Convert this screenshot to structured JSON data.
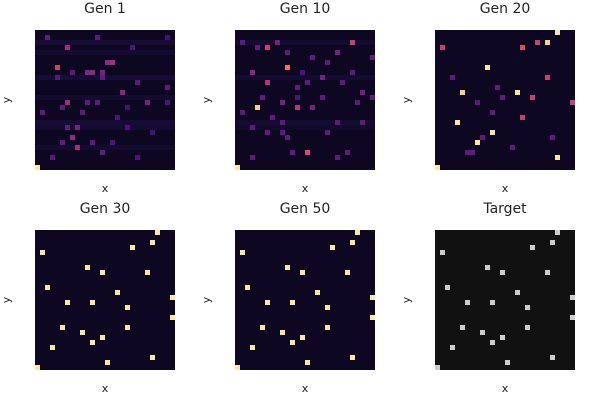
{
  "chart_data": [
    {
      "type": "heatmap",
      "title": "Gen 1",
      "xlabel": "x",
      "ylabel": "y",
      "grid_size": 28,
      "ticks": false,
      "colormap": "magma",
      "background_value": 0.06,
      "row_bands": [
        {
          "row": 2,
          "value": 0.1
        },
        {
          "row": 4,
          "value": 0.09
        },
        {
          "row": 9,
          "value": 0.1
        },
        {
          "row": 13,
          "value": 0.09
        },
        {
          "row": 18,
          "value": 0.1
        },
        {
          "row": 19,
          "value": 0.09
        },
        {
          "row": 23,
          "value": 0.09
        }
      ],
      "cells": [
        [
          2,
          1,
          0.3
        ],
        [
          6,
          3,
          0.45
        ],
        [
          12,
          1,
          0.3
        ],
        [
          19,
          3,
          0.25
        ],
        [
          26,
          1,
          0.22
        ],
        [
          14,
          6,
          0.42
        ],
        [
          15,
          6,
          0.45
        ],
        [
          4,
          7,
          0.55
        ],
        [
          10,
          8,
          0.38
        ],
        [
          11,
          8,
          0.4
        ],
        [
          13,
          8,
          0.35
        ],
        [
          7,
          8,
          0.3
        ],
        [
          4,
          9,
          0.28
        ],
        [
          13,
          9,
          0.3
        ],
        [
          20,
          10,
          0.3
        ],
        [
          17,
          12,
          0.4
        ],
        [
          26,
          11,
          0.3
        ],
        [
          6,
          14,
          0.45
        ],
        [
          10,
          14,
          0.3
        ],
        [
          12,
          14,
          0.3
        ],
        [
          22,
          14,
          0.35
        ],
        [
          26,
          14,
          0.25
        ],
        [
          5,
          15,
          0.3
        ],
        [
          18,
          15,
          0.22
        ],
        [
          1,
          16,
          0.3
        ],
        [
          9,
          16,
          0.3
        ],
        [
          16,
          17,
          0.25
        ],
        [
          6,
          19,
          0.3
        ],
        [
          8,
          19,
          0.35
        ],
        [
          18,
          19,
          0.25
        ],
        [
          23,
          20,
          0.22
        ],
        [
          7,
          21,
          0.42
        ],
        [
          5,
          22,
          0.3
        ],
        [
          11,
          22,
          0.3
        ],
        [
          15,
          22,
          0.25
        ],
        [
          8,
          23,
          0.45
        ],
        [
          13,
          24,
          0.3
        ],
        [
          3,
          25,
          0.28
        ],
        [
          20,
          25,
          0.25
        ],
        [
          0,
          27,
          0.95
        ]
      ]
    },
    {
      "type": "heatmap",
      "title": "Gen 10",
      "xlabel": "x",
      "ylabel": "y",
      "grid_size": 28,
      "ticks": false,
      "colormap": "magma",
      "background_value": 0.06,
      "row_bands": [
        {
          "row": 2,
          "value": 0.09
        },
        {
          "row": 9,
          "value": 0.09
        },
        {
          "row": 18,
          "value": 0.09
        },
        {
          "row": 19,
          "value": 0.08
        }
      ],
      "cells": [
        [
          23,
          2,
          0.55
        ],
        [
          1,
          2,
          0.3
        ],
        [
          8,
          2,
          0.35
        ],
        [
          6,
          3,
          0.55
        ],
        [
          4,
          3,
          0.3
        ],
        [
          20,
          4,
          0.35
        ],
        [
          10,
          4,
          0.3
        ],
        [
          15,
          5,
          0.3
        ],
        [
          27,
          5,
          0.3
        ],
        [
          10,
          7,
          0.7
        ],
        [
          18,
          6,
          0.3
        ],
        [
          3,
          8,
          0.4
        ],
        [
          13,
          8,
          0.25
        ],
        [
          23,
          8,
          0.3
        ],
        [
          17,
          9,
          0.35
        ],
        [
          6,
          10,
          0.5
        ],
        [
          14,
          10,
          0.3
        ],
        [
          21,
          10,
          0.3
        ],
        [
          12,
          11,
          0.3
        ],
        [
          25,
          12,
          0.35
        ],
        [
          5,
          13,
          0.3
        ],
        [
          12,
          13,
          0.25
        ],
        [
          17,
          13,
          0.3
        ],
        [
          27,
          13,
          0.3
        ],
        [
          9,
          14,
          0.35
        ],
        [
          24,
          14,
          0.3
        ],
        [
          4,
          15,
          0.9
        ],
        [
          12,
          15,
          0.5
        ],
        [
          15,
          15,
          0.35
        ],
        [
          1,
          16,
          0.3
        ],
        [
          7,
          17,
          0.3
        ],
        [
          20,
          18,
          0.3
        ],
        [
          9,
          18,
          0.3
        ],
        [
          25,
          18,
          0.3
        ],
        [
          3,
          19,
          0.3
        ],
        [
          6,
          20,
          0.3
        ],
        [
          9,
          20,
          0.3
        ],
        [
          18,
          20,
          0.3
        ],
        [
          10,
          21,
          0.3
        ],
        [
          14,
          24,
          0.6
        ],
        [
          11,
          24,
          0.3
        ],
        [
          22,
          24,
          0.3
        ],
        [
          20,
          25,
          0.3
        ],
        [
          3,
          25,
          0.3
        ],
        [
          0,
          27,
          0.95
        ]
      ]
    },
    {
      "type": "heatmap",
      "title": "Gen 20",
      "xlabel": "x",
      "ylabel": "y",
      "grid_size": 28,
      "ticks": false,
      "colormap": "magma",
      "background_value": 0.06,
      "row_bands": [],
      "cells": [
        [
          24,
          0,
          0.95
        ],
        [
          20,
          2,
          0.55
        ],
        [
          22,
          2,
          0.9
        ],
        [
          1,
          3,
          0.55
        ],
        [
          17,
          3,
          0.6
        ],
        [
          10,
          7,
          0.95
        ],
        [
          22,
          9,
          0.55
        ],
        [
          3,
          9,
          0.3
        ],
        [
          12,
          11,
          0.3
        ],
        [
          5,
          12,
          0.9
        ],
        [
          16,
          12,
          0.95
        ],
        [
          19,
          13,
          0.55
        ],
        [
          13,
          13,
          0.3
        ],
        [
          8,
          14,
          0.3
        ],
        [
          27,
          14,
          0.55
        ],
        [
          11,
          16,
          0.3
        ],
        [
          17,
          17,
          0.55
        ],
        [
          4,
          18,
          0.95
        ],
        [
          11,
          20,
          0.95
        ],
        [
          9,
          21,
          0.3
        ],
        [
          23,
          21,
          0.3
        ],
        [
          8,
          22,
          0.95
        ],
        [
          15,
          23,
          0.3
        ],
        [
          7,
          24,
          0.3
        ],
        [
          24,
          25,
          0.95
        ],
        [
          6,
          24,
          0.3
        ],
        [
          0,
          27,
          0.95
        ]
      ]
    },
    {
      "type": "heatmap",
      "title": "Gen 30",
      "xlabel": "x",
      "ylabel": "y",
      "grid_size": 28,
      "ticks": false,
      "colormap": "magma",
      "background_value": 0.06,
      "row_bands": [],
      "cells": [
        [
          24,
          0,
          0.95
        ],
        [
          23,
          2,
          0.95
        ],
        [
          19,
          3,
          0.95
        ],
        [
          1,
          4,
          0.95
        ],
        [
          10,
          7,
          0.95
        ],
        [
          13,
          8,
          0.95
        ],
        [
          22,
          8,
          0.95
        ],
        [
          2,
          11,
          0.95
        ],
        [
          16,
          12,
          0.95
        ],
        [
          27,
          13,
          0.95
        ],
        [
          6,
          14,
          0.95
        ],
        [
          11,
          14,
          0.95
        ],
        [
          18,
          15,
          0.95
        ],
        [
          27,
          17,
          0.95
        ],
        [
          5,
          19,
          0.95
        ],
        [
          18,
          19,
          0.95
        ],
        [
          9,
          20,
          0.95
        ],
        [
          13,
          21,
          0.95
        ],
        [
          11,
          22,
          0.95
        ],
        [
          3,
          23,
          0.95
        ],
        [
          14,
          26,
          0.95
        ],
        [
          23,
          25,
          0.95
        ],
        [
          0,
          27,
          0.95
        ]
      ]
    },
    {
      "type": "heatmap",
      "title": "Gen 50",
      "xlabel": "x",
      "ylabel": "y",
      "grid_size": 28,
      "ticks": false,
      "colormap": "magma",
      "background_value": 0.06,
      "row_bands": [],
      "cells": [
        [
          24,
          0,
          0.95
        ],
        [
          23,
          2,
          0.95
        ],
        [
          19,
          3,
          0.95
        ],
        [
          1,
          4,
          0.95
        ],
        [
          10,
          7,
          0.95
        ],
        [
          13,
          8,
          0.95
        ],
        [
          22,
          8,
          0.95
        ],
        [
          2,
          11,
          0.95
        ],
        [
          16,
          12,
          0.95
        ],
        [
          27,
          13,
          0.95
        ],
        [
          6,
          14,
          0.95
        ],
        [
          11,
          14,
          0.95
        ],
        [
          18,
          15,
          0.95
        ],
        [
          27,
          17,
          0.95
        ],
        [
          5,
          19,
          0.95
        ],
        [
          18,
          19,
          0.95
        ],
        [
          9,
          20,
          0.95
        ],
        [
          13,
          21,
          0.95
        ],
        [
          11,
          22,
          0.95
        ],
        [
          3,
          23,
          0.95
        ],
        [
          14,
          26,
          0.95
        ],
        [
          23,
          25,
          0.95
        ],
        [
          0,
          27,
          0.95
        ]
      ]
    },
    {
      "type": "heatmap",
      "title": "Target",
      "xlabel": "x",
      "ylabel": "y",
      "grid_size": 28,
      "ticks": false,
      "colormap": "gray",
      "background_value": 0.0,
      "row_bands": [],
      "cells": [
        [
          24,
          0,
          0.8
        ],
        [
          23,
          2,
          0.8
        ],
        [
          19,
          3,
          0.8
        ],
        [
          1,
          4,
          0.8
        ],
        [
          10,
          7,
          0.8
        ],
        [
          13,
          8,
          0.8
        ],
        [
          22,
          8,
          0.8
        ],
        [
          2,
          11,
          0.8
        ],
        [
          16,
          12,
          0.8
        ],
        [
          27,
          13,
          0.8
        ],
        [
          6,
          14,
          0.8
        ],
        [
          11,
          14,
          0.8
        ],
        [
          18,
          15,
          0.8
        ],
        [
          27,
          17,
          0.8
        ],
        [
          5,
          19,
          0.8
        ],
        [
          18,
          19,
          0.8
        ],
        [
          9,
          20,
          0.8
        ],
        [
          13,
          21,
          0.8
        ],
        [
          11,
          22,
          0.8
        ],
        [
          3,
          23,
          0.8
        ],
        [
          14,
          26,
          0.8
        ],
        [
          23,
          25,
          0.8
        ],
        [
          0,
          27,
          0.8
        ]
      ]
    }
  ]
}
